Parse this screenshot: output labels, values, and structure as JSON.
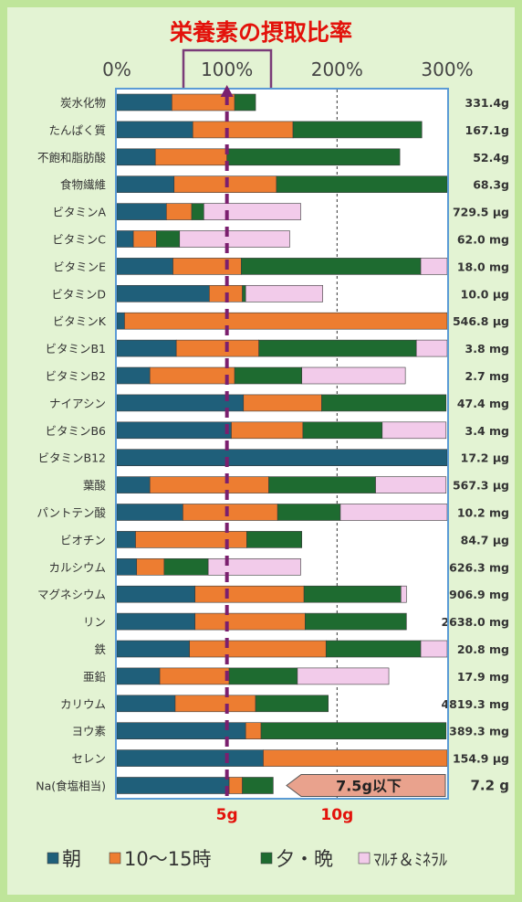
{
  "chart_data": {
    "type": "bar",
    "stacked": true,
    "orientation": "horizontal",
    "title": "栄養素の摂取比率",
    "x_ticks": [
      "0%",
      "100%",
      "200%",
      "300%"
    ],
    "xlim": [
      0,
      300
    ],
    "reference_line_value": 100,
    "grid": "vertical dashed at 200%",
    "colors": [
      "#1f5f7a",
      "#ed7d31",
      "#1e6b30",
      "#f2cbea"
    ],
    "series": [
      {
        "name": "朝",
        "values": [
          50,
          69,
          35,
          52,
          45,
          15,
          51,
          84,
          7,
          54,
          30,
          115,
          104,
          300,
          30,
          60,
          17,
          18,
          71,
          71,
          66,
          39,
          53,
          117,
          133,
          102
        ]
      },
      {
        "name": "10〜15時",
        "values": [
          57,
          91,
          65,
          93,
          23,
          21,
          62,
          30,
          293,
          75,
          77,
          71,
          65,
          0,
          108,
          86,
          101,
          25,
          99,
          100,
          124,
          63,
          73,
          14,
          167,
          12
        ]
      },
      {
        "name": "夕・晩",
        "values": [
          19,
          117,
          157,
          155,
          11,
          21,
          163,
          3,
          0,
          143,
          61,
          113,
          72,
          0,
          97,
          57,
          50,
          40,
          88,
          92,
          86,
          62,
          66,
          168,
          0,
          28
        ]
      },
      {
        "name": "ﾏﾙﾁ＆ﾐﾈﾗﾙ",
        "values": [
          0,
          0,
          0,
          0,
          88,
          100,
          24,
          70,
          0,
          28,
          94,
          0,
          58,
          0,
          64,
          98,
          0,
          84,
          5,
          0,
          24,
          83,
          0,
          0,
          0,
          0
        ]
      }
    ],
    "categories": [
      "炭水化物",
      "たんぱく質",
      "不飽和脂肪酸",
      "食物繊維",
      "ビタミンA",
      "ビタミンC",
      "ビタミンE",
      "ビタミンD",
      "ビタミンK",
      "ビタミンB1",
      "ビタミンB2",
      "ナイアシン",
      "ビタミンB6",
      "ビタミンB12",
      "葉酸",
      "パントテン酸",
      "ビオチン",
      "カルシウム",
      "マグネシウム",
      "リン",
      "鉄",
      "亜鉛",
      "カリウム",
      "ヨウ素",
      "セレン",
      "Na(食塩相当)"
    ],
    "amounts": [
      "331.4g",
      "167.1g",
      "52.4g",
      "68.3g",
      "729.5 μg",
      "62.0 mg",
      "18.0 mg",
      "10.0 μg",
      "546.8 μg",
      "3.8 mg",
      "2.7 mg",
      "47.4 mg",
      "3.4 mg",
      "17.2 μg",
      "567.3 μg",
      "10.2 mg",
      "84.7 μg",
      "626.3 mg",
      "906.9 mg",
      "2638.0 mg",
      "20.8 mg",
      "17.9 mg",
      "4819.3 mg",
      "389.3 mg",
      "154.9 μg",
      "7.2 g"
    ],
    "annotations": {
      "na_limit": "7.5g以下",
      "na_ticks": [
        "5g",
        "10g"
      ]
    },
    "legend_position": "bottom"
  }
}
